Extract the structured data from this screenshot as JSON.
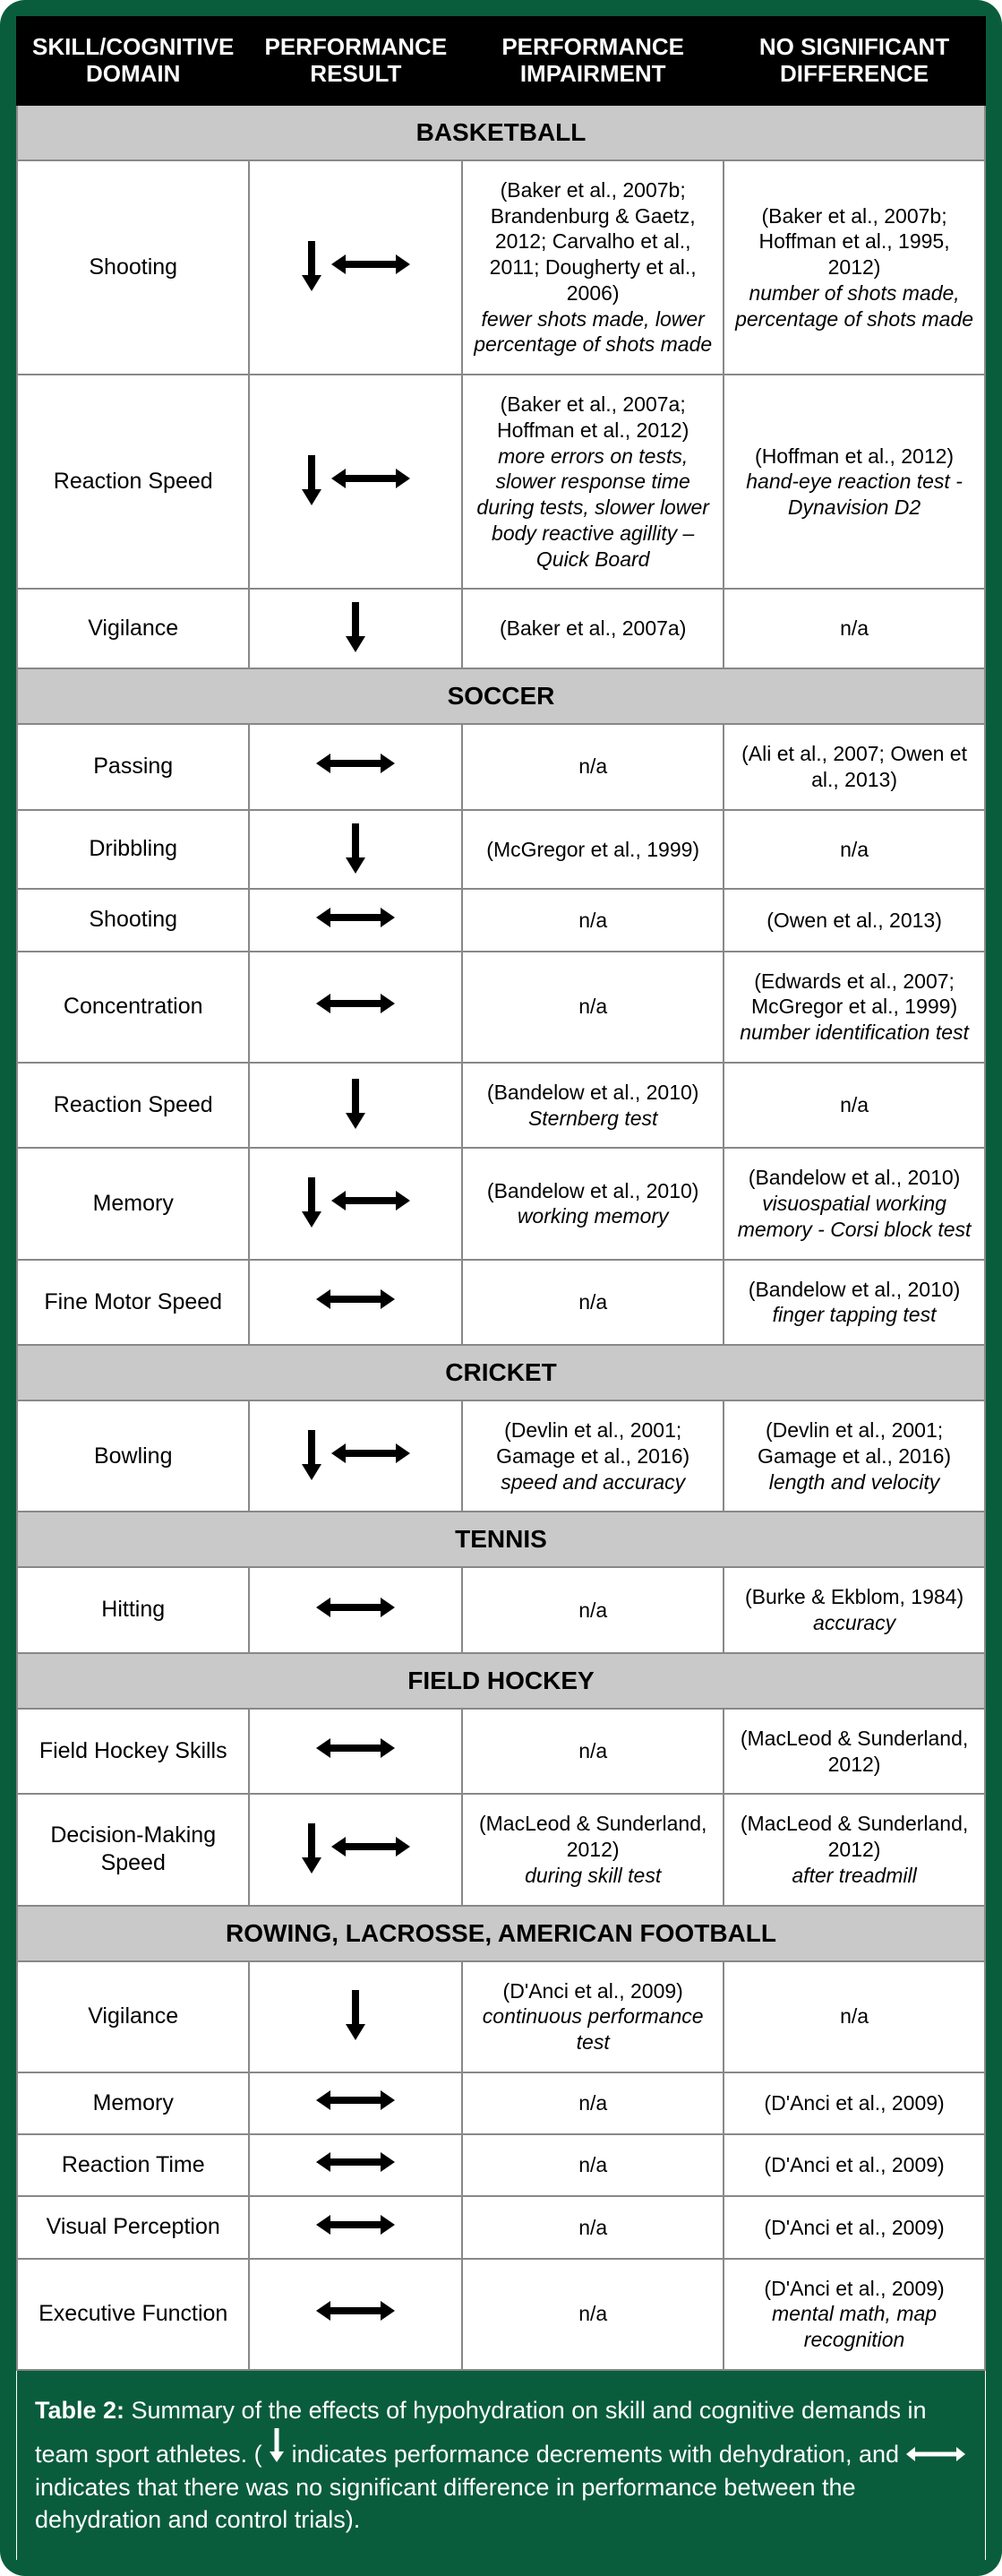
{
  "headers": {
    "col1": "SKILL/COGNITIVE DOMAIN",
    "col2": "PERFORMANCE RESULT",
    "col3": "PERFORMANCE IMPAIRMENT",
    "col4": "NO SIGNIFICANT DIFFERENCE"
  },
  "sections": [
    {
      "title": "BASKETBALL",
      "rows": [
        {
          "skill": "Shooting",
          "result": [
            "down",
            "horiz"
          ],
          "impair_refs": "(Baker et al., 2007b; Brandenburg & Gaetz, 2012; Carvalho et al., 2011; Dougherty et al., 2006)",
          "impair_detail": "fewer shots made, lower percentage of shots made",
          "nsd_refs": "(Baker et al., 2007b; Hoffman et al., 1995,  2012)",
          "nsd_detail": "number of shots made, percentage of shots made"
        },
        {
          "skill": "Reaction Speed",
          "result": [
            "down",
            "horiz"
          ],
          "impair_refs": "(Baker et al., 2007a; Hoffman et al., 2012)",
          "impair_detail": "more errors on tests, slower response time during tests, slower lower body reactive agillity – Quick Board",
          "nsd_refs": "(Hoffman et al., 2012)",
          "nsd_detail": "hand-eye reaction test - Dynavision D2"
        },
        {
          "skill": "Vigilance",
          "result": [
            "down"
          ],
          "impair_refs": "(Baker et al., 2007a)",
          "impair_detail": "",
          "nsd_refs": "n/a",
          "nsd_detail": ""
        }
      ]
    },
    {
      "title": "SOCCER",
      "rows": [
        {
          "skill": "Passing",
          "result": [
            "horiz"
          ],
          "impair_refs": "n/a",
          "impair_detail": "",
          "nsd_refs": "(Ali et al., 2007; Owen et al., 2013)",
          "nsd_detail": ""
        },
        {
          "skill": "Dribbling",
          "result": [
            "down"
          ],
          "impair_refs": "(McGregor et al., 1999)",
          "impair_detail": "",
          "nsd_refs": "n/a",
          "nsd_detail": ""
        },
        {
          "skill": "Shooting",
          "result": [
            "horiz"
          ],
          "impair_refs": "n/a",
          "impair_detail": "",
          "nsd_refs": "(Owen et al., 2013)",
          "nsd_detail": ""
        },
        {
          "skill": "Concentration",
          "result": [
            "horiz"
          ],
          "impair_refs": "n/a",
          "impair_detail": "",
          "nsd_refs": "(Edwards et al., 2007; McGregor et al., 1999)",
          "nsd_detail": "number identification test"
        },
        {
          "skill": "Reaction Speed",
          "result": [
            "down"
          ],
          "impair_refs": "(Bandelow et al., 2010)",
          "impair_detail": "Sternberg test",
          "nsd_refs": "n/a",
          "nsd_detail": ""
        },
        {
          "skill": "Memory",
          "result": [
            "down",
            "horiz"
          ],
          "impair_refs": "(Bandelow et al., 2010)",
          "impair_detail": "working memory",
          "nsd_refs": "(Bandelow et al., 2010)",
          "nsd_detail": "visuospatial working memory - Corsi block test"
        },
        {
          "skill": "Fine Motor Speed",
          "result": [
            "horiz"
          ],
          "impair_refs": "n/a",
          "impair_detail": "",
          "nsd_refs": "(Bandelow et al., 2010)",
          "nsd_detail": "finger tapping test"
        }
      ]
    },
    {
      "title": "CRICKET",
      "rows": [
        {
          "skill": "Bowling",
          "result": [
            "down",
            "horiz"
          ],
          "impair_refs": "(Devlin et al., 2001; Gamage et al., 2016)",
          "impair_detail": "speed and accuracy",
          "nsd_refs": "(Devlin et al., 2001; Gamage et al., 2016)",
          "nsd_detail": "length and velocity"
        }
      ]
    },
    {
      "title": "TENNIS",
      "rows": [
        {
          "skill": "Hitting",
          "result": [
            "horiz"
          ],
          "impair_refs": "n/a",
          "impair_detail": "",
          "nsd_refs": "(Burke & Ekblom, 1984)",
          "nsd_detail": "accuracy"
        }
      ]
    },
    {
      "title": "FIELD HOCKEY",
      "rows": [
        {
          "skill": "Field Hockey Skills",
          "result": [
            "horiz"
          ],
          "impair_refs": "n/a",
          "impair_detail": "",
          "nsd_refs": "(MacLeod & Sunderland, 2012)",
          "nsd_detail": ""
        },
        {
          "skill": "Decision-Making Speed",
          "result": [
            "down",
            "horiz"
          ],
          "impair_refs": "(MacLeod & Sunderland, 2012)",
          "impair_detail": "during skill test",
          "nsd_refs": "(MacLeod & Sunderland, 2012)",
          "nsd_detail": "after treadmill"
        }
      ]
    },
    {
      "title": "ROWING, LACROSSE, AMERICAN FOOTBALL",
      "rows": [
        {
          "skill": "Vigilance",
          "result": [
            "down"
          ],
          "impair_refs": "(D'Anci et al., 2009)",
          "impair_detail": "continuous performance test",
          "nsd_refs": "n/a",
          "nsd_detail": ""
        },
        {
          "skill": "Memory",
          "result": [
            "horiz"
          ],
          "impair_refs": "n/a",
          "impair_detail": "",
          "nsd_refs": "(D'Anci et al., 2009)",
          "nsd_detail": ""
        },
        {
          "skill": "Reaction Time",
          "result": [
            "horiz"
          ],
          "impair_refs": "n/a",
          "impair_detail": "",
          "nsd_refs": "(D'Anci et al., 2009)",
          "nsd_detail": ""
        },
        {
          "skill": "Visual Perception",
          "result": [
            "horiz"
          ],
          "impair_refs": "n/a",
          "impair_detail": "",
          "nsd_refs": "(D'Anci et al., 2009)",
          "nsd_detail": ""
        },
        {
          "skill": "Executive Function",
          "result": [
            "horiz"
          ],
          "impair_refs": "n/a",
          "impair_detail": "",
          "nsd_refs": "(D'Anci et al., 2009)",
          "nsd_detail": "mental math, map recognition"
        }
      ]
    }
  ],
  "caption": {
    "label": "Table 2:",
    "text1": " Summary of the effects of hypohydration on skill and cognitive demands in team sport athletes. ( ",
    "text2": " indicates performance decrements with dehydration, and ",
    "text3": " indicates that there was no significant difference in performance between the dehydration and control trials)."
  },
  "colors": {
    "outer_bg": "#0a5d3c",
    "header_bg": "#000000",
    "header_fg": "#ffffff",
    "section_bg": "#c9c9c9",
    "border": "#888888",
    "text": "#000000"
  }
}
